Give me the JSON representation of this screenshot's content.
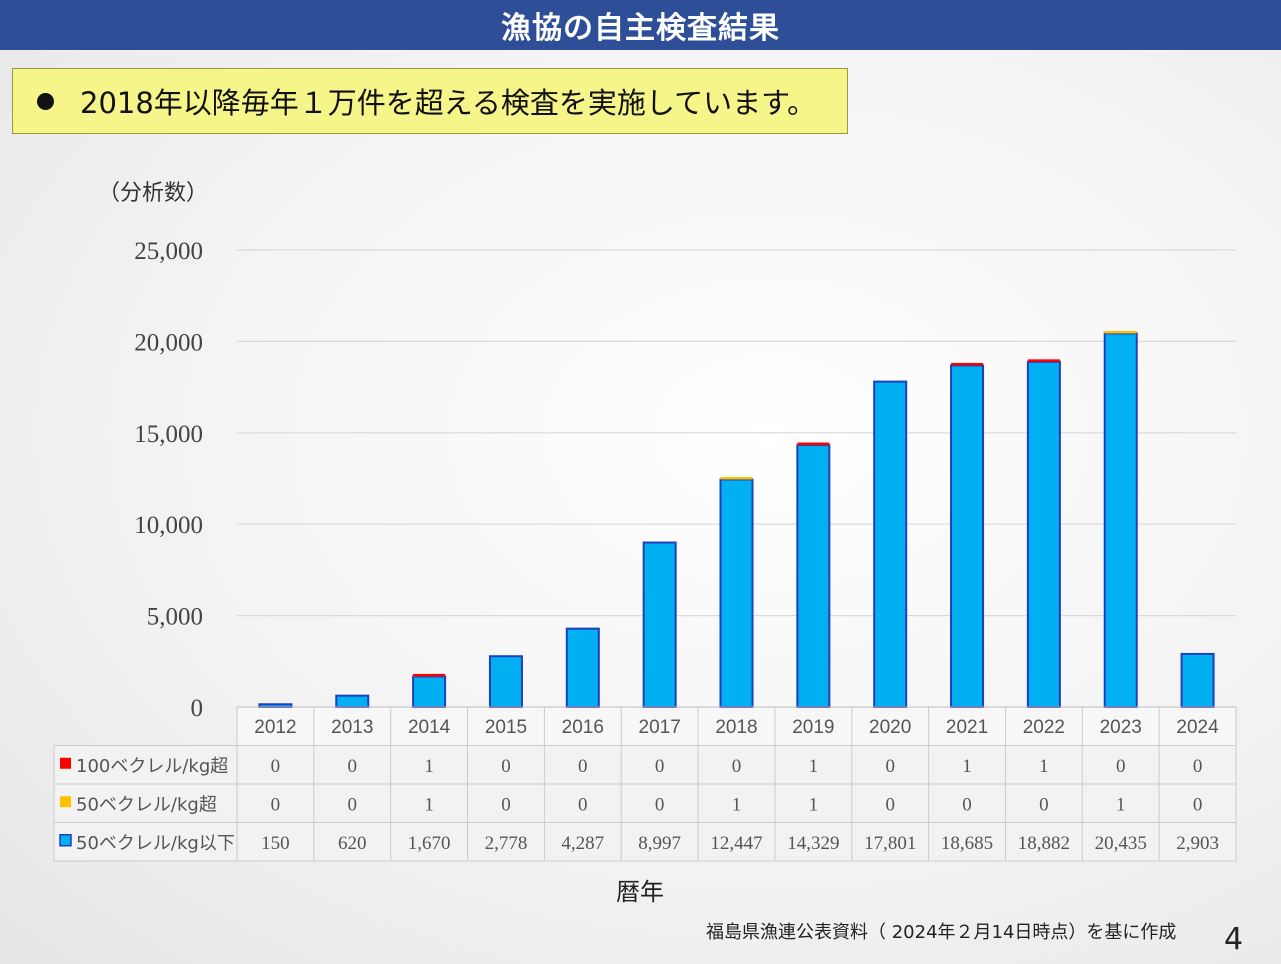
{
  "header": {
    "title": "漁協の自主検査結果"
  },
  "callout": {
    "text": "2018年以降毎年１万件を超える検査を実施しています。"
  },
  "footer": {
    "source": "福島県漁連公表資料（ 2024年２月14日時点）を基に作成",
    "page_number": "4"
  },
  "chart_data": {
    "type": "bar",
    "stacked": true,
    "ylabel": "（分析数）",
    "xlabel": "暦年",
    "ylim": [
      0,
      25000
    ],
    "yticks": [
      "0",
      "5,000",
      "10,000",
      "15,000",
      "20,000",
      "25,000"
    ],
    "grid": true,
    "categories": [
      "2012",
      "2013",
      "2014",
      "2015",
      "2016",
      "2017",
      "2018",
      "2019",
      "2020",
      "2021",
      "2022",
      "2023",
      "2024"
    ],
    "series": [
      {
        "name": "50ベクレル/kg以下",
        "color": "#00b0f0",
        "values": [
          150,
          620,
          1670,
          2778,
          4287,
          8997,
          12447,
          14329,
          17801,
          18685,
          18882,
          20435,
          2903
        ],
        "labels": [
          "150",
          "620",
          "1,670",
          "2,778",
          "4,287",
          "8,997",
          "12,447",
          "14,329",
          "17,801",
          "18,685",
          "18,882",
          "20,435",
          "2,903"
        ]
      },
      {
        "name": "50ベクレル/kg超",
        "color": "#ffc000",
        "values": [
          0,
          0,
          1,
          0,
          0,
          0,
          1,
          1,
          0,
          0,
          0,
          1,
          0
        ],
        "labels": [
          "0",
          "0",
          "1",
          "0",
          "0",
          "0",
          "1",
          "1",
          "0",
          "0",
          "0",
          "1",
          "0"
        ]
      },
      {
        "name": "100ベクレル/kg超",
        "color": "#ff0000",
        "values": [
          0,
          0,
          1,
          0,
          0,
          0,
          0,
          1,
          0,
          1,
          1,
          0,
          0
        ],
        "labels": [
          "0",
          "0",
          "1",
          "0",
          "0",
          "0",
          "0",
          "1",
          "0",
          "1",
          "1",
          "0",
          "0"
        ]
      }
    ],
    "table_row_order": [
      "100ベクレル/kg超",
      "50ベクレル/kg超",
      "50ベクレル/kg以下"
    ]
  }
}
